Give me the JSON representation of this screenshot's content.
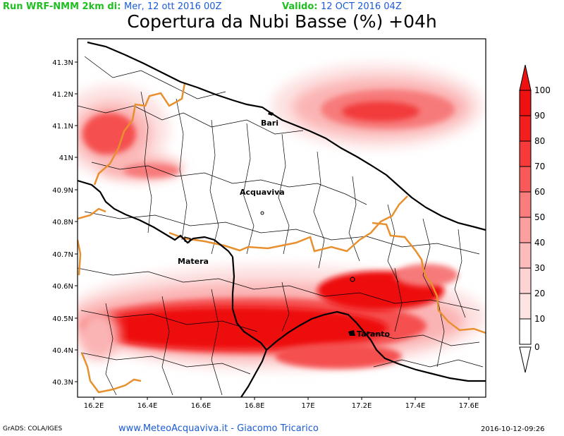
{
  "header": {
    "run_label": "Run WRF-NMM 2km di:",
    "run_value": "Mer, 12 ott 2016 00Z",
    "valid_label": "Valido:",
    "valid_value": "12 OCT 2016 04Z",
    "title": "Copertura da Nubi Basse (%) +04h"
  },
  "map": {
    "lon_ticks": [
      "16.2E",
      "16.4E",
      "16.6E",
      "16.8E",
      "17E",
      "17.2E",
      "17.4E",
      "17.6E"
    ],
    "lat_ticks": [
      "41.3N",
      "41.2N",
      "41.1N",
      "41N",
      "40.9N",
      "40.8N",
      "40.7N",
      "40.6N",
      "40.5N",
      "40.4N",
      "40.3N"
    ],
    "cities": [
      {
        "name": "Bari"
      },
      {
        "name": "Acquaviva"
      },
      {
        "name": "Matera"
      },
      {
        "name": "Taranto"
      }
    ],
    "colors": {
      "coast": "#000000",
      "region_border": "#e8902e",
      "municipal": "#000000",
      "cloud": "#ff1a1a"
    }
  },
  "colorbar": {
    "labels": [
      "100",
      "90",
      "80",
      "70",
      "60",
      "50",
      "40",
      "30",
      "20",
      "10",
      "0"
    ],
    "colors": [
      "#ee1111",
      "#f31e1e",
      "#f63a3a",
      "#f85a5a",
      "#fa7d7d",
      "#fb9f9f",
      "#fcbcbc",
      "#fdd3d3",
      "#fee3e3",
      "#ffffff"
    ]
  },
  "footer": {
    "left": "GrADS: COLA/IGES",
    "center": "www.MeteoAcquaviva.it - Giacomo Tricarico",
    "right": "2016-10-12-09:26"
  }
}
